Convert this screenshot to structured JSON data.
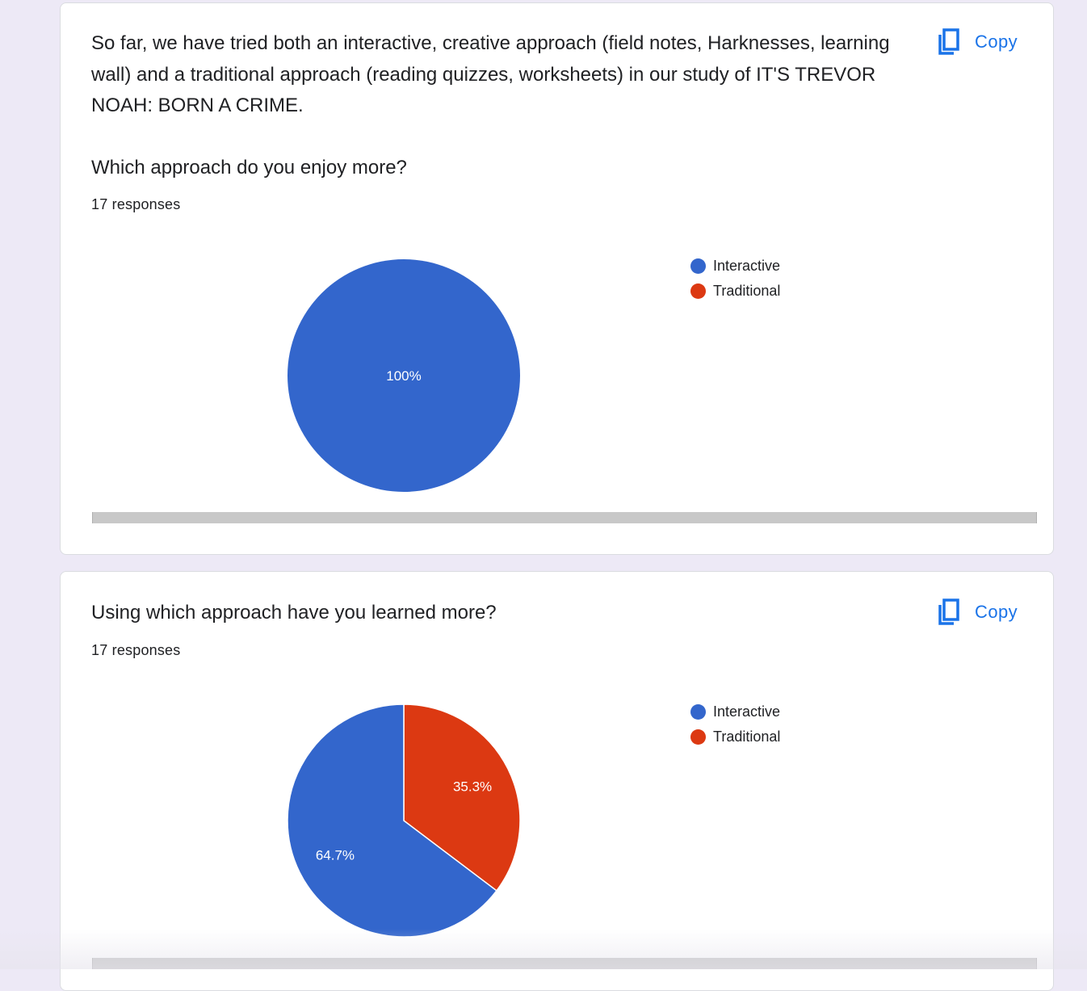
{
  "colors": {
    "interactive": "#3366cc",
    "traditional": "#dc3912",
    "accent": "#1a73e8",
    "background": "#ede9f6"
  },
  "cards": [
    {
      "question": "So far, we have tried both an interactive, creative approach (field notes, Harknesses, learning wall) and a traditional approach (reading quizzes, worksheets) in our study of IT'S TREVOR NOAH: BORN A CRIME.\n\nWhich approach do you enjoy more?",
      "responses": "17 responses",
      "copy_label": "Copy",
      "copy_icon": "copy-icon",
      "legend": [
        "Interactive",
        "Traditional"
      ]
    },
    {
      "question": "Using which approach have you learned more?",
      "responses": "17 responses",
      "copy_label": "Copy",
      "copy_icon": "copy-icon",
      "legend": [
        "Interactive",
        "Traditional"
      ]
    }
  ],
  "chart_data": [
    {
      "type": "pie",
      "categories": [
        "Interactive",
        "Traditional"
      ],
      "values": [
        100,
        0
      ],
      "labels": [
        "100%",
        ""
      ],
      "legend_position": "right"
    },
    {
      "type": "pie",
      "categories": [
        "Interactive",
        "Traditional"
      ],
      "values": [
        64.7,
        35.3
      ],
      "labels": [
        "64.7%",
        "35.3%"
      ],
      "legend_position": "right"
    }
  ]
}
